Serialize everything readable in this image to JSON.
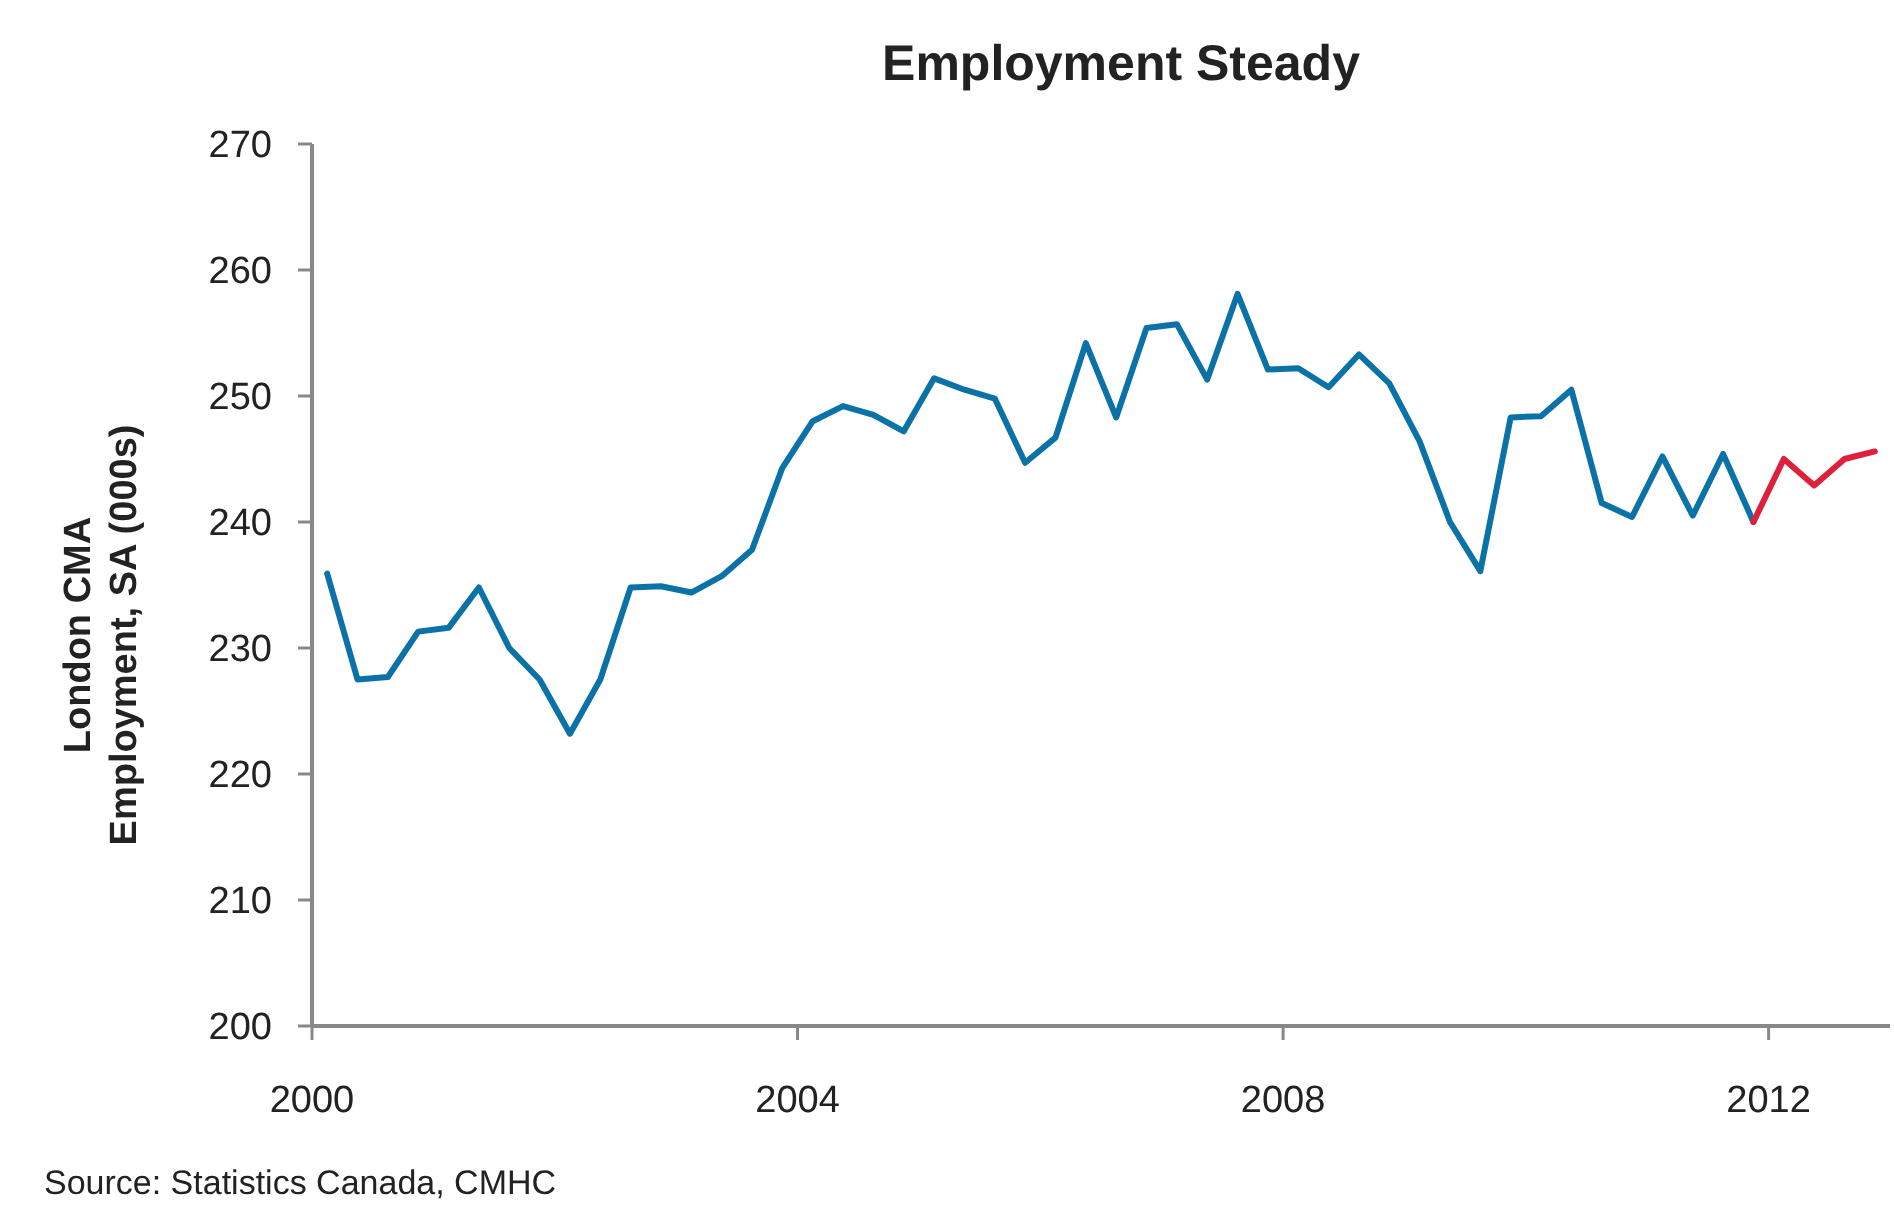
{
  "chart_data": {
    "type": "line",
    "title": "Employment Steady",
    "ylabel": "London CMA\nEmployment, SA (000s)",
    "annotations": [
      "Source: Statistics Canada, CMHC"
    ],
    "xlim": [
      2000,
      2013
    ],
    "xticks": [
      2000,
      2004,
      2008,
      2012
    ],
    "ylim": [
      200,
      270
    ],
    "yticks": [
      200,
      210,
      220,
      230,
      240,
      250,
      260,
      270
    ],
    "grid": false,
    "marker": "none",
    "line_style": "solid",
    "series": [
      {
        "color": "#0a72a6",
        "x": [
          2000.125,
          2000.375,
          2000.625,
          2000.875,
          2001.125,
          2001.375,
          2001.625,
          2001.875,
          2002.125,
          2002.375,
          2002.625,
          2002.875,
          2003.125,
          2003.375,
          2003.625,
          2003.875,
          2004.125,
          2004.375,
          2004.625,
          2004.875,
          2005.125,
          2005.375,
          2005.625,
          2005.875,
          2006.125,
          2006.375,
          2006.625,
          2006.875,
          2007.125,
          2007.375,
          2007.625,
          2007.875,
          2008.125,
          2008.375,
          2008.625,
          2008.875,
          2009.125,
          2009.375,
          2009.625,
          2009.875,
          2010.125,
          2010.375,
          2010.625,
          2010.875,
          2011.125,
          2011.375,
          2011.625,
          2011.875
        ],
        "values": [
          235.9,
          227.5,
          227.7,
          231.3,
          231.6,
          234.8,
          230.0,
          227.5,
          223.2,
          227.5,
          234.8,
          234.9,
          234.4,
          235.7,
          237.8,
          244.3,
          248.0,
          249.2,
          248.5,
          247.2,
          251.4,
          250.5,
          249.8,
          244.7,
          246.7,
          254.2,
          248.3,
          255.4,
          255.7,
          251.3,
          258.1,
          252.1,
          252.2,
          250.7,
          253.3,
          251.0,
          246.4,
          240.0,
          236.1,
          248.3,
          248.4,
          250.5,
          241.5,
          240.4,
          245.2,
          240.5,
          245.4,
          240.0
        ]
      },
      {
        "color": "#e0203a",
        "x": [
          2011.875,
          2012.125,
          2012.375,
          2012.625,
          2012.875
        ],
        "values": [
          240.0,
          245.0,
          242.9,
          245.0,
          245.6
        ]
      }
    ]
  }
}
